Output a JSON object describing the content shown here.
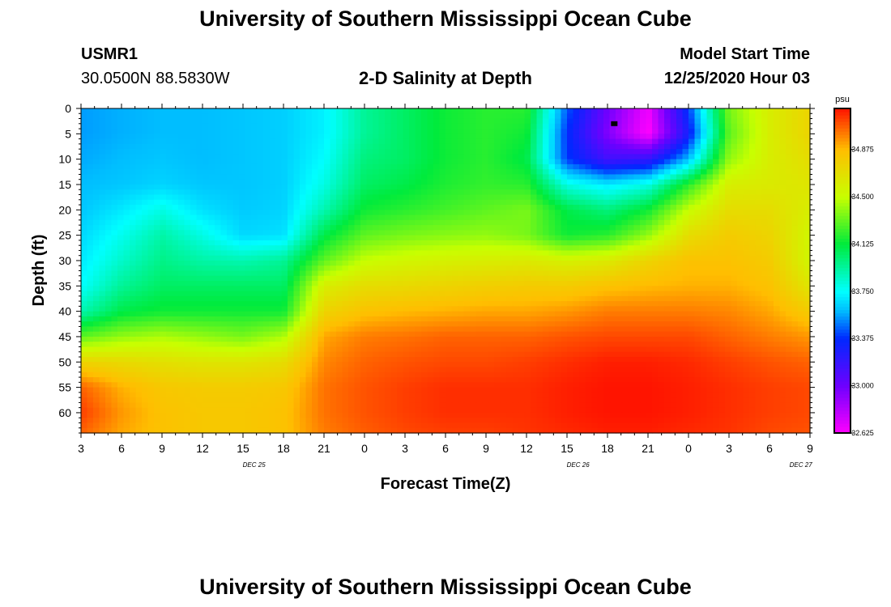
{
  "header": {
    "title": "University of Southern Mississippi Ocean Cube",
    "station_id": "USMR1",
    "station_coords": "30.0500N 88.5830W",
    "plot_title": "2-D Salinity at Depth",
    "model_label": "Model Start Time",
    "model_time": "12/25/2020 Hour 03"
  },
  "footer": {
    "title": "University of Southern Mississippi Ocean Cube"
  },
  "chart_data": {
    "type": "heatmap",
    "title": "2-D Salinity at Depth",
    "xlabel": "Forecast Time(Z)",
    "ylabel": "Depth (ft)",
    "units": "psu",
    "x_hours": [
      0,
      24,
      48,
      72
    ],
    "x_tick_labels": [
      "3",
      "6",
      "9",
      "12",
      "15",
      "18",
      "21",
      "0",
      "3",
      "6",
      "9",
      "12",
      "15",
      "18",
      "21",
      "0",
      "3",
      "6",
      "9"
    ],
    "x_tick_hours": [
      0,
      3,
      6,
      9,
      12,
      15,
      18,
      21,
      24,
      27,
      30,
      33,
      36,
      39,
      42,
      45,
      48,
      51,
      54
    ],
    "day_labels": [
      {
        "hour": 13,
        "label": "DEC 25"
      },
      {
        "hour": 37,
        "label": "DEC 26"
      },
      {
        "hour": 53.5,
        "label": "DEC 27"
      }
    ],
    "y_ticks": [
      0,
      5,
      10,
      15,
      20,
      25,
      30,
      35,
      40,
      45,
      50,
      55,
      60
    ],
    "ylim": [
      0,
      64
    ],
    "xlim": [
      0,
      54
    ],
    "colorbar": {
      "min": 32.625,
      "max": 35.2,
      "tick_labels": [
        "34.875",
        "34.500",
        "34.125",
        "33.750",
        "33.375",
        "33.000",
        "32.625"
      ],
      "tick_values": [
        34.875,
        34.5,
        34.125,
        33.75,
        33.375,
        33.0,
        32.625
      ]
    },
    "grid_times": [
      0,
      3,
      6,
      9,
      12,
      15,
      18,
      21,
      24,
      27,
      30,
      33,
      36,
      39,
      42,
      45,
      48,
      51,
      54
    ],
    "grid_depths": [
      0,
      5,
      10,
      15,
      20,
      25,
      30,
      35,
      40,
      45,
      50,
      55,
      60,
      64
    ],
    "salinity_grid": [
      [
        33.55,
        33.58,
        33.6,
        33.6,
        33.62,
        33.64,
        33.72,
        33.95,
        34.05,
        34.15,
        34.2,
        34.2,
        33.45,
        33.0,
        32.66,
        33.4,
        34.35,
        34.6,
        34.75
      ],
      [
        33.55,
        33.58,
        33.6,
        33.6,
        33.62,
        33.64,
        33.72,
        33.95,
        34.05,
        34.15,
        34.2,
        34.15,
        33.38,
        32.95,
        32.62,
        33.3,
        34.3,
        34.6,
        34.75
      ],
      [
        33.57,
        33.6,
        33.62,
        33.6,
        33.62,
        33.64,
        33.75,
        34.0,
        34.05,
        34.15,
        34.2,
        34.1,
        33.4,
        33.15,
        33.2,
        33.6,
        34.4,
        34.6,
        34.7
      ],
      [
        33.6,
        33.62,
        33.65,
        33.62,
        33.62,
        33.64,
        33.8,
        34.05,
        34.1,
        34.18,
        34.22,
        34.2,
        33.8,
        33.7,
        33.8,
        34.2,
        34.6,
        34.62,
        34.65
      ],
      [
        33.62,
        33.7,
        33.8,
        33.68,
        33.63,
        33.65,
        33.9,
        34.15,
        34.2,
        34.25,
        34.3,
        34.35,
        34.1,
        34.0,
        34.15,
        34.5,
        34.7,
        34.7,
        34.6
      ],
      [
        33.66,
        33.78,
        33.92,
        33.8,
        33.66,
        33.68,
        34.1,
        34.3,
        34.35,
        34.38,
        34.4,
        34.35,
        34.15,
        34.2,
        34.4,
        34.7,
        34.8,
        34.75,
        34.55
      ],
      [
        33.7,
        33.85,
        33.98,
        33.92,
        33.9,
        33.95,
        34.3,
        34.5,
        34.55,
        34.58,
        34.6,
        34.62,
        34.58,
        34.62,
        34.75,
        34.85,
        34.85,
        34.8,
        34.55
      ],
      [
        33.75,
        33.95,
        34.05,
        34.05,
        34.05,
        34.05,
        34.6,
        34.7,
        34.72,
        34.75,
        34.78,
        34.8,
        34.8,
        34.85,
        34.88,
        34.9,
        34.9,
        34.85,
        34.65
      ],
      [
        33.9,
        34.1,
        34.15,
        34.15,
        34.15,
        34.15,
        34.75,
        34.85,
        34.88,
        34.9,
        34.92,
        34.92,
        34.95,
        35.0,
        35.0,
        35.0,
        34.98,
        34.92,
        34.8
      ],
      [
        34.3,
        34.4,
        34.45,
        34.4,
        34.35,
        34.45,
        34.92,
        35.0,
        35.02,
        35.05,
        35.05,
        35.05,
        35.08,
        35.1,
        35.1,
        35.1,
        35.05,
        35.0,
        34.95
      ],
      [
        34.75,
        34.72,
        34.68,
        34.65,
        34.65,
        34.7,
        34.98,
        35.05,
        35.08,
        35.1,
        35.1,
        35.12,
        35.15,
        35.18,
        35.18,
        35.16,
        35.12,
        35.08,
        35.05
      ],
      [
        35.05,
        34.9,
        34.82,
        34.8,
        34.8,
        34.82,
        35.02,
        35.08,
        35.12,
        35.15,
        35.15,
        35.15,
        35.18,
        35.2,
        35.2,
        35.18,
        35.15,
        35.12,
        35.1
      ],
      [
        35.12,
        34.95,
        34.85,
        34.82,
        34.82,
        34.85,
        35.02,
        35.08,
        35.12,
        35.15,
        35.15,
        35.15,
        35.18,
        35.2,
        35.2,
        35.18,
        35.15,
        35.12,
        35.1
      ],
      [
        35.05,
        34.92,
        34.85,
        34.82,
        34.82,
        34.85,
        35.0,
        35.06,
        35.1,
        35.12,
        35.12,
        35.14,
        35.16,
        35.18,
        35.18,
        35.16,
        35.14,
        35.1,
        35.08
      ]
    ],
    "marker": {
      "hour": 39.5,
      "depth": 3
    }
  }
}
